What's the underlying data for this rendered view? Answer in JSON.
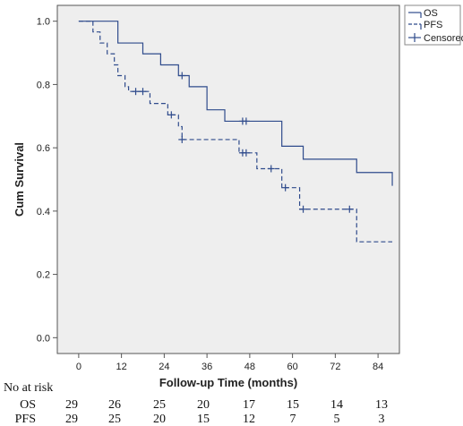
{
  "chart_data": {
    "type": "line",
    "subtype": "kaplan-meier",
    "xlabel": "Follow-up Time (months)",
    "ylabel": "Cum Survival",
    "xlim": [
      -6,
      90
    ],
    "ylim": [
      -0.05,
      1.05
    ],
    "xticks": [
      0,
      12,
      24,
      36,
      48,
      60,
      72,
      84
    ],
    "yticks": [
      0.0,
      0.2,
      0.4,
      0.6,
      0.8,
      1.0
    ],
    "grid": false,
    "legend_position": "top-right",
    "plot_background": "#eeeeee",
    "series": [
      {
        "name": "OS",
        "style": "solid",
        "color": "#2f4b8c",
        "steps": [
          [
            0,
            1.0
          ],
          [
            11,
            0.931
          ],
          [
            18,
            0.897
          ],
          [
            23,
            0.862
          ],
          [
            28,
            0.828
          ],
          [
            31,
            0.793
          ],
          [
            36,
            0.72
          ],
          [
            41,
            0.684
          ],
          [
            57,
            0.605
          ],
          [
            63,
            0.564
          ],
          [
            78,
            0.522
          ],
          [
            88,
            0.48
          ]
        ],
        "censored": [
          [
            29,
            0.828
          ],
          [
            46,
            0.684
          ],
          [
            47,
            0.684
          ]
        ],
        "end_x": 88
      },
      {
        "name": "PFS",
        "style": "dashed",
        "color": "#2f4b8c",
        "steps": [
          [
            0,
            1.0
          ],
          [
            4,
            0.966
          ],
          [
            6,
            0.931
          ],
          [
            8,
            0.897
          ],
          [
            10,
            0.862
          ],
          [
            11,
            0.828
          ],
          [
            13,
            0.793
          ],
          [
            14,
            0.778
          ],
          [
            20,
            0.74
          ],
          [
            25,
            0.704
          ],
          [
            28,
            0.667
          ],
          [
            29,
            0.626
          ],
          [
            45,
            0.584
          ],
          [
            50,
            0.534
          ],
          [
            57,
            0.474
          ],
          [
            62,
            0.406
          ],
          [
            78,
            0.303
          ]
        ],
        "censored": [
          [
            16,
            0.778
          ],
          [
            18,
            0.778
          ],
          [
            26,
            0.704
          ],
          [
            29,
            0.626
          ],
          [
            46,
            0.584
          ],
          [
            47,
            0.584
          ],
          [
            54,
            0.534
          ],
          [
            58,
            0.474
          ],
          [
            63,
            0.406
          ],
          [
            76,
            0.406
          ]
        ],
        "end_x": 88
      }
    ],
    "legend": [
      {
        "label": "OS",
        "kind": "solid-line"
      },
      {
        "label": "PFS",
        "kind": "dashed-line"
      },
      {
        "label": "Censored",
        "kind": "plus-mark"
      }
    ],
    "risk_table": {
      "title": "No at risk",
      "rows": [
        {
          "label": "OS",
          "values": [
            29,
            26,
            25,
            20,
            17,
            15,
            14,
            13
          ]
        },
        {
          "label": "PFS",
          "values": [
            29,
            25,
            20,
            15,
            12,
            7,
            5,
            3
          ]
        }
      ]
    }
  }
}
